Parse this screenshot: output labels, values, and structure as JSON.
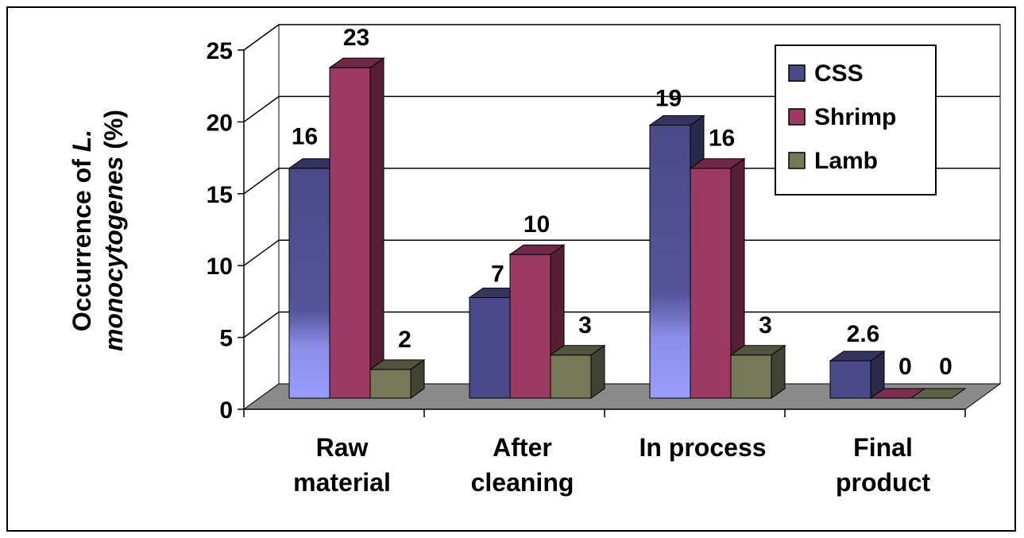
{
  "chart_data": {
    "type": "bar",
    "title": "",
    "ylabel_line1": "Occurrence of ",
    "ylabel_italic1": "L.",
    "ylabel_italic2": "monocytogenes",
    "ylabel_line2_suffix": " (%)",
    "categories": [
      [
        "Raw",
        "material"
      ],
      [
        "After",
        "cleaning"
      ],
      [
        "In process"
      ],
      [
        "Final",
        "product"
      ]
    ],
    "series": [
      {
        "name": "CSS",
        "values": [
          16,
          7,
          19,
          2.6
        ],
        "labels": [
          "16",
          "7",
          "19",
          "2.6"
        ],
        "color": "#4a4a88"
      },
      {
        "name": "Shrimp",
        "values": [
          23,
          10,
          16,
          0
        ],
        "labels": [
          "23",
          "10",
          "16",
          "0"
        ],
        "color": "#9b3a62"
      },
      {
        "name": "Lamb",
        "values": [
          2,
          3,
          3,
          0
        ],
        "labels": [
          "2",
          "3",
          "3",
          "0"
        ],
        "color": "#76785a"
      }
    ],
    "ylim": [
      0,
      25
    ],
    "yticks": [
      0,
      5,
      10,
      15,
      20,
      25
    ],
    "grid": true,
    "legend": "top-right",
    "style": "3d-clustered-column"
  }
}
